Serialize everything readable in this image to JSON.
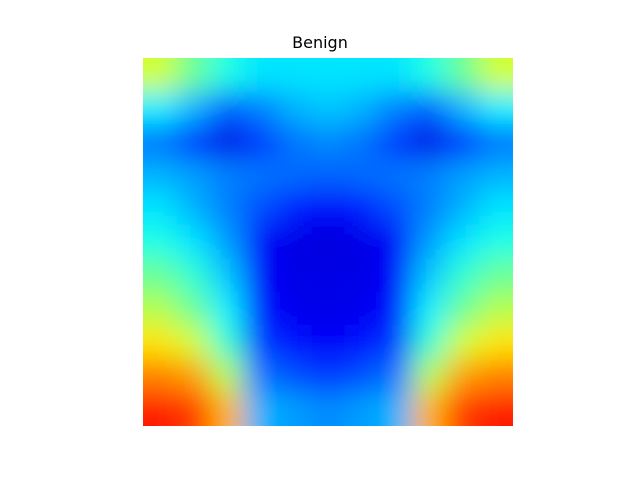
{
  "chart_data": {
    "type": "heatmap",
    "title": "Benign",
    "xlabel": "",
    "ylabel": "",
    "axes": "off",
    "grid": false,
    "legend": "none",
    "colormap": "jet",
    "value_range": [
      0,
      1
    ],
    "rows": 11,
    "cols": 11,
    "values": [
      [
        0.58,
        0.48,
        0.4,
        0.35,
        0.35,
        0.35,
        0.35,
        0.35,
        0.4,
        0.48,
        0.58
      ],
      [
        0.36,
        0.3,
        0.22,
        0.25,
        0.3,
        0.32,
        0.3,
        0.25,
        0.22,
        0.3,
        0.36
      ],
      [
        0.24,
        0.18,
        0.1,
        0.18,
        0.24,
        0.26,
        0.24,
        0.18,
        0.1,
        0.18,
        0.24
      ],
      [
        0.3,
        0.28,
        0.25,
        0.24,
        0.23,
        0.22,
        0.23,
        0.24,
        0.25,
        0.28,
        0.3
      ],
      [
        0.35,
        0.3,
        0.25,
        0.2,
        0.15,
        0.12,
        0.15,
        0.2,
        0.25,
        0.3,
        0.35
      ],
      [
        0.4,
        0.35,
        0.28,
        0.12,
        0.1,
        0.09,
        0.1,
        0.12,
        0.28,
        0.35,
        0.4
      ],
      [
        0.48,
        0.42,
        0.32,
        0.12,
        0.1,
        0.1,
        0.1,
        0.12,
        0.32,
        0.42,
        0.48
      ],
      [
        0.55,
        0.48,
        0.36,
        0.14,
        0.11,
        0.1,
        0.11,
        0.14,
        0.36,
        0.48,
        0.55
      ],
      [
        0.65,
        0.58,
        0.42,
        0.18,
        0.14,
        0.12,
        0.14,
        0.18,
        0.42,
        0.58,
        0.65
      ],
      [
        0.75,
        0.72,
        0.55,
        0.24,
        0.2,
        0.18,
        0.2,
        0.24,
        0.55,
        0.72,
        0.75
      ],
      [
        0.85,
        0.82,
        0.7,
        0.3,
        0.28,
        0.26,
        0.28,
        0.3,
        0.7,
        0.82,
        0.85
      ]
    ]
  }
}
